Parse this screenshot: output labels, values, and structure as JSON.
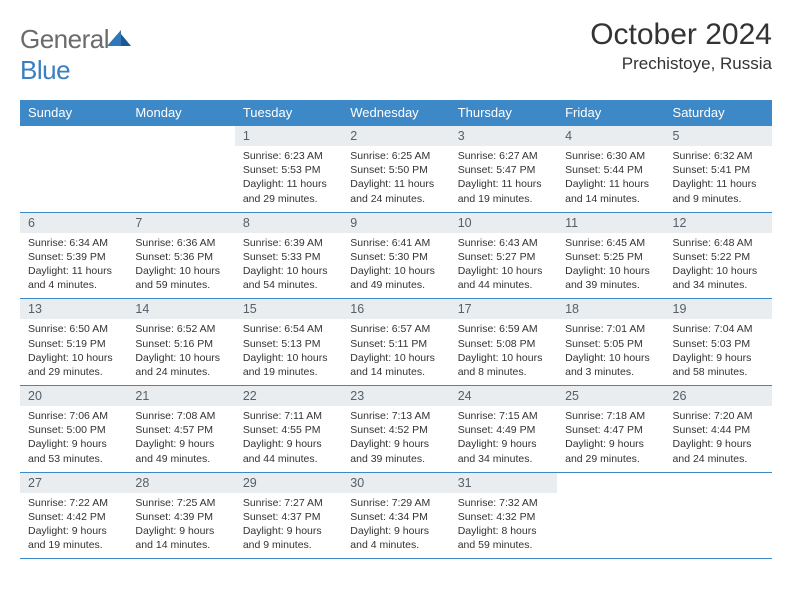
{
  "logo": {
    "word1": "General",
    "word2": "Blue",
    "mark_color": "#2f77b8"
  },
  "title": "October 2024",
  "location": "Prechistoye, Russia",
  "colors": {
    "header_bg": "#3d88c7",
    "header_text": "#ffffff",
    "daynum_bg": "#e9edef",
    "daynum_text": "#55606a",
    "rule": "#3d88c7",
    "body_text": "#333333",
    "page_bg": "#ffffff"
  },
  "dow": [
    "Sunday",
    "Monday",
    "Tuesday",
    "Wednesday",
    "Thursday",
    "Friday",
    "Saturday"
  ],
  "weeks": [
    [
      null,
      null,
      {
        "n": "1",
        "sr": "Sunrise: 6:23 AM",
        "ss": "Sunset: 5:53 PM",
        "dl": "Daylight: 11 hours and 29 minutes."
      },
      {
        "n": "2",
        "sr": "Sunrise: 6:25 AM",
        "ss": "Sunset: 5:50 PM",
        "dl": "Daylight: 11 hours and 24 minutes."
      },
      {
        "n": "3",
        "sr": "Sunrise: 6:27 AM",
        "ss": "Sunset: 5:47 PM",
        "dl": "Daylight: 11 hours and 19 minutes."
      },
      {
        "n": "4",
        "sr": "Sunrise: 6:30 AM",
        "ss": "Sunset: 5:44 PM",
        "dl": "Daylight: 11 hours and 14 minutes."
      },
      {
        "n": "5",
        "sr": "Sunrise: 6:32 AM",
        "ss": "Sunset: 5:41 PM",
        "dl": "Daylight: 11 hours and 9 minutes."
      }
    ],
    [
      {
        "n": "6",
        "sr": "Sunrise: 6:34 AM",
        "ss": "Sunset: 5:39 PM",
        "dl": "Daylight: 11 hours and 4 minutes."
      },
      {
        "n": "7",
        "sr": "Sunrise: 6:36 AM",
        "ss": "Sunset: 5:36 PM",
        "dl": "Daylight: 10 hours and 59 minutes."
      },
      {
        "n": "8",
        "sr": "Sunrise: 6:39 AM",
        "ss": "Sunset: 5:33 PM",
        "dl": "Daylight: 10 hours and 54 minutes."
      },
      {
        "n": "9",
        "sr": "Sunrise: 6:41 AM",
        "ss": "Sunset: 5:30 PM",
        "dl": "Daylight: 10 hours and 49 minutes."
      },
      {
        "n": "10",
        "sr": "Sunrise: 6:43 AM",
        "ss": "Sunset: 5:27 PM",
        "dl": "Daylight: 10 hours and 44 minutes."
      },
      {
        "n": "11",
        "sr": "Sunrise: 6:45 AM",
        "ss": "Sunset: 5:25 PM",
        "dl": "Daylight: 10 hours and 39 minutes."
      },
      {
        "n": "12",
        "sr": "Sunrise: 6:48 AM",
        "ss": "Sunset: 5:22 PM",
        "dl": "Daylight: 10 hours and 34 minutes."
      }
    ],
    [
      {
        "n": "13",
        "sr": "Sunrise: 6:50 AM",
        "ss": "Sunset: 5:19 PM",
        "dl": "Daylight: 10 hours and 29 minutes."
      },
      {
        "n": "14",
        "sr": "Sunrise: 6:52 AM",
        "ss": "Sunset: 5:16 PM",
        "dl": "Daylight: 10 hours and 24 minutes."
      },
      {
        "n": "15",
        "sr": "Sunrise: 6:54 AM",
        "ss": "Sunset: 5:13 PM",
        "dl": "Daylight: 10 hours and 19 minutes."
      },
      {
        "n": "16",
        "sr": "Sunrise: 6:57 AM",
        "ss": "Sunset: 5:11 PM",
        "dl": "Daylight: 10 hours and 14 minutes."
      },
      {
        "n": "17",
        "sr": "Sunrise: 6:59 AM",
        "ss": "Sunset: 5:08 PM",
        "dl": "Daylight: 10 hours and 8 minutes."
      },
      {
        "n": "18",
        "sr": "Sunrise: 7:01 AM",
        "ss": "Sunset: 5:05 PM",
        "dl": "Daylight: 10 hours and 3 minutes."
      },
      {
        "n": "19",
        "sr": "Sunrise: 7:04 AM",
        "ss": "Sunset: 5:03 PM",
        "dl": "Daylight: 9 hours and 58 minutes."
      }
    ],
    [
      {
        "n": "20",
        "sr": "Sunrise: 7:06 AM",
        "ss": "Sunset: 5:00 PM",
        "dl": "Daylight: 9 hours and 53 minutes."
      },
      {
        "n": "21",
        "sr": "Sunrise: 7:08 AM",
        "ss": "Sunset: 4:57 PM",
        "dl": "Daylight: 9 hours and 49 minutes."
      },
      {
        "n": "22",
        "sr": "Sunrise: 7:11 AM",
        "ss": "Sunset: 4:55 PM",
        "dl": "Daylight: 9 hours and 44 minutes."
      },
      {
        "n": "23",
        "sr": "Sunrise: 7:13 AM",
        "ss": "Sunset: 4:52 PM",
        "dl": "Daylight: 9 hours and 39 minutes."
      },
      {
        "n": "24",
        "sr": "Sunrise: 7:15 AM",
        "ss": "Sunset: 4:49 PM",
        "dl": "Daylight: 9 hours and 34 minutes."
      },
      {
        "n": "25",
        "sr": "Sunrise: 7:18 AM",
        "ss": "Sunset: 4:47 PM",
        "dl": "Daylight: 9 hours and 29 minutes."
      },
      {
        "n": "26",
        "sr": "Sunrise: 7:20 AM",
        "ss": "Sunset: 4:44 PM",
        "dl": "Daylight: 9 hours and 24 minutes."
      }
    ],
    [
      {
        "n": "27",
        "sr": "Sunrise: 7:22 AM",
        "ss": "Sunset: 4:42 PM",
        "dl": "Daylight: 9 hours and 19 minutes."
      },
      {
        "n": "28",
        "sr": "Sunrise: 7:25 AM",
        "ss": "Sunset: 4:39 PM",
        "dl": "Daylight: 9 hours and 14 minutes."
      },
      {
        "n": "29",
        "sr": "Sunrise: 7:27 AM",
        "ss": "Sunset: 4:37 PM",
        "dl": "Daylight: 9 hours and 9 minutes."
      },
      {
        "n": "30",
        "sr": "Sunrise: 7:29 AM",
        "ss": "Sunset: 4:34 PM",
        "dl": "Daylight: 9 hours and 4 minutes."
      },
      {
        "n": "31",
        "sr": "Sunrise: 7:32 AM",
        "ss": "Sunset: 4:32 PM",
        "dl": "Daylight: 8 hours and 59 minutes."
      },
      null,
      null
    ]
  ]
}
